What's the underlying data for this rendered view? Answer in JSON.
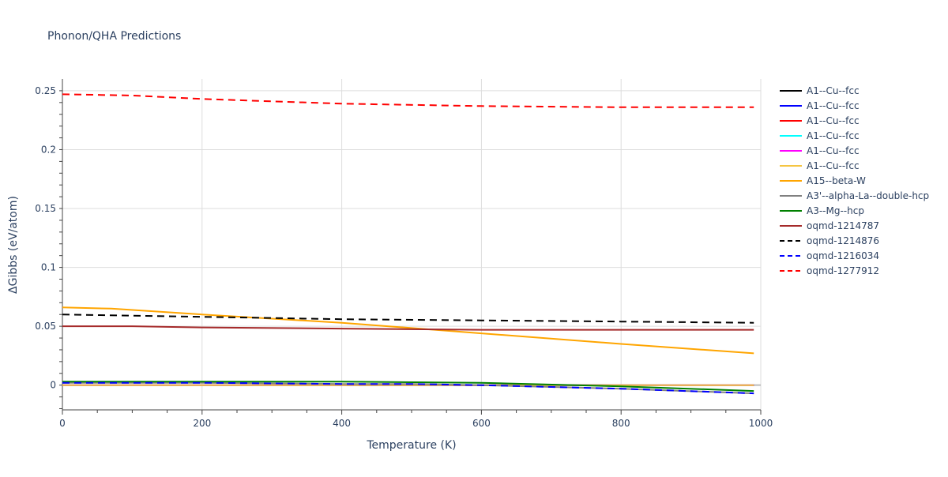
{
  "chart_data": {
    "type": "line",
    "title": "Phonon/QHA Predictions",
    "xlabel": "Temperature (K)",
    "ylabel": "ΔGibbs (eV/atom)",
    "xlim": [
      0,
      1000
    ],
    "ylim": [
      -0.021,
      0.26
    ],
    "x_ticks": [
      0,
      200,
      400,
      600,
      800,
      1000
    ],
    "x_tick_labels": [
      "0",
      "200",
      "400",
      "600",
      "800",
      "1000"
    ],
    "y_ticks": [
      0,
      0.05,
      0.1,
      0.15,
      0.2,
      0.25
    ],
    "y_tick_labels": [
      "0",
      "0.05",
      "0.1",
      "0.15",
      "0.2",
      "0.25"
    ],
    "grid": true,
    "legend_position": "right",
    "series": [
      {
        "name": "A1--Cu--fcc",
        "color": "#000000",
        "dash": "solid",
        "x": [
          0,
          200,
          400,
          600,
          800,
          990
        ],
        "y": [
          0,
          0,
          0,
          0,
          0,
          0
        ]
      },
      {
        "name": "A1--Cu--fcc",
        "color": "#0000ff",
        "dash": "solid",
        "x": [
          0,
          200,
          400,
          600,
          800,
          990
        ],
        "y": [
          0,
          0,
          0,
          0,
          0,
          0
        ]
      },
      {
        "name": "A1--Cu--fcc",
        "color": "#ff0000",
        "dash": "solid",
        "x": [
          0,
          200,
          400,
          600,
          800,
          990
        ],
        "y": [
          0,
          0,
          0,
          0,
          0,
          0
        ]
      },
      {
        "name": "A1--Cu--fcc",
        "color": "#00ffff",
        "dash": "solid",
        "x": [
          0,
          200,
          400,
          600,
          800,
          990
        ],
        "y": [
          0,
          0,
          0,
          0,
          0,
          0
        ]
      },
      {
        "name": "A1--Cu--fcc",
        "color": "#ff00ff",
        "dash": "solid",
        "x": [
          0,
          200,
          400,
          600,
          800,
          990
        ],
        "y": [
          0,
          0,
          0,
          0,
          0,
          0
        ]
      },
      {
        "name": "A1--Cu--fcc",
        "color": "#f5c542",
        "dash": "solid",
        "x": [
          0,
          200,
          400,
          600,
          800,
          990
        ],
        "y": [
          0,
          0,
          0,
          0,
          0,
          0
        ]
      },
      {
        "name": "A15--beta-W",
        "color": "#ffa500",
        "dash": "solid",
        "x": [
          0,
          70,
          200,
          400,
          600,
          800,
          990
        ],
        "y": [
          0.066,
          0.065,
          0.06,
          0.053,
          0.044,
          0.035,
          0.027
        ]
      },
      {
        "name": "A3'--alpha-La--double-hcp",
        "color": "#808080",
        "dash": "solid",
        "x": [
          0,
          200,
          400,
          500,
          600,
          800,
          990
        ],
        "y": [
          0.002,
          0.002,
          0.001,
          0.001,
          0.0,
          -0.003,
          -0.007
        ]
      },
      {
        "name": "A3--Mg--hcp",
        "color": "#008000",
        "dash": "solid",
        "x": [
          0,
          200,
          400,
          600,
          800,
          990
        ],
        "y": [
          0.003,
          0.003,
          0.003,
          0.002,
          -0.001,
          -0.005
        ]
      },
      {
        "name": "oqmd-1214787",
        "color": "#a52a2a",
        "dash": "solid",
        "x": [
          0,
          100,
          200,
          400,
          600,
          800,
          990
        ],
        "y": [
          0.05,
          0.05,
          0.049,
          0.048,
          0.047,
          0.047,
          0.047
        ]
      },
      {
        "name": "oqmd-1214876",
        "color": "#000000",
        "dash": "dash",
        "x": [
          0,
          100,
          200,
          400,
          600,
          800,
          990
        ],
        "y": [
          0.06,
          0.059,
          0.058,
          0.056,
          0.055,
          0.054,
          0.053
        ]
      },
      {
        "name": "oqmd-1216034",
        "color": "#0000ff",
        "dash": "dash",
        "x": [
          0,
          200,
          400,
          500,
          600,
          800,
          990
        ],
        "y": [
          0.002,
          0.002,
          0.001,
          0.001,
          0.0,
          -0.003,
          -0.007
        ]
      },
      {
        "name": "oqmd-1277912",
        "color": "#ff0000",
        "dash": "dash",
        "x": [
          0,
          100,
          200,
          400,
          600,
          800,
          990
        ],
        "y": [
          0.247,
          0.246,
          0.243,
          0.239,
          0.237,
          0.236,
          0.236
        ]
      }
    ]
  }
}
